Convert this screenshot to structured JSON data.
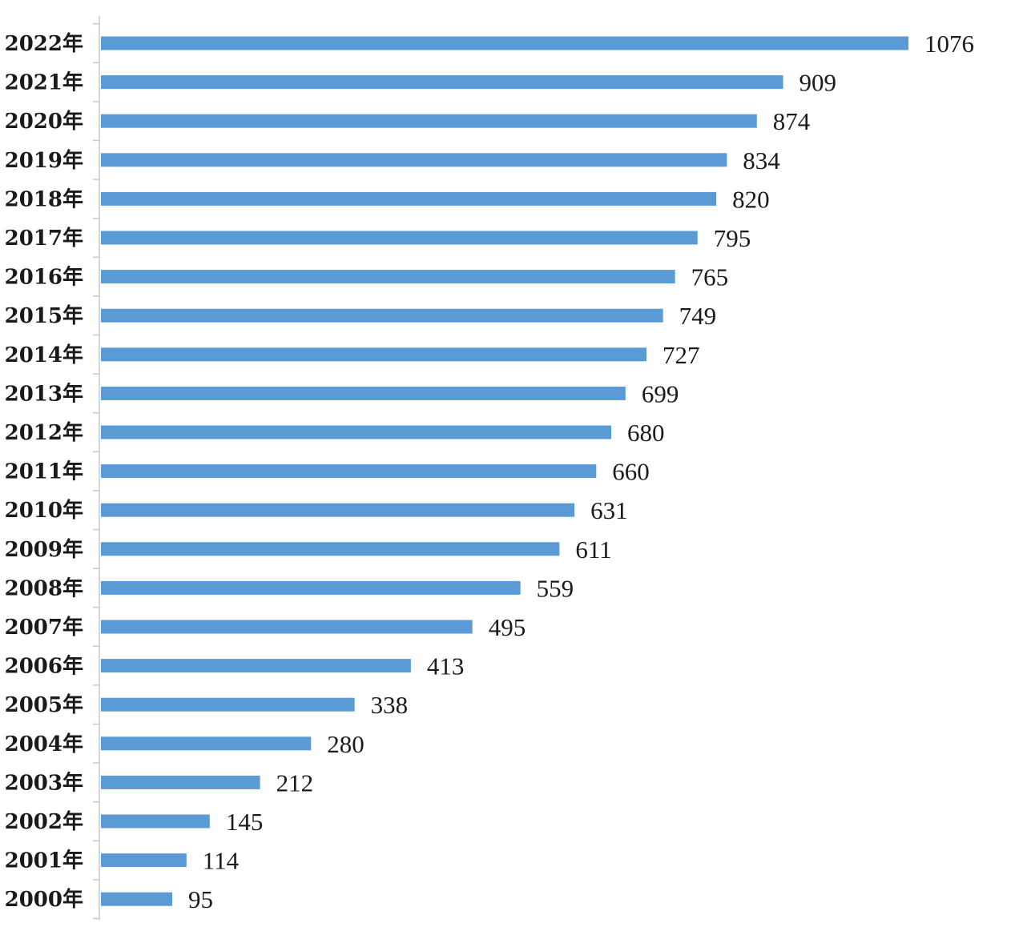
{
  "chart_data": {
    "type": "bar",
    "orientation": "horizontal",
    "categories": [
      "2022年",
      "2021年",
      "2020年",
      "2019年",
      "2018年",
      "2017年",
      "2016年",
      "2015年",
      "2014年",
      "2013年",
      "2012年",
      "2011年",
      "2010年",
      "2009年",
      "2008年",
      "2007年",
      "2006年",
      "2005年",
      "2004年",
      "2003年",
      "2002年",
      "2001年",
      "2000年"
    ],
    "values": [
      1076,
      909,
      874,
      834,
      820,
      795,
      765,
      749,
      727,
      699,
      680,
      660,
      631,
      611,
      559,
      495,
      413,
      338,
      280,
      212,
      145,
      114,
      95
    ],
    "value_labels": [
      "1076",
      "909",
      "874",
      "834",
      "820",
      "795",
      "765",
      "749",
      "727",
      "699",
      "680",
      "660",
      "631",
      "611",
      "559",
      "495",
      "413",
      "338",
      "280",
      "212",
      "145",
      "114",
      "95"
    ],
    "title": "",
    "xlabel": "",
    "ylabel": "",
    "xlim": [
      0,
      1076
    ],
    "grid": false,
    "legend": "none",
    "colors": {
      "bar": "#5b9bd5",
      "axis": "#c8c8c8",
      "text": "#1a1a1a"
    }
  }
}
